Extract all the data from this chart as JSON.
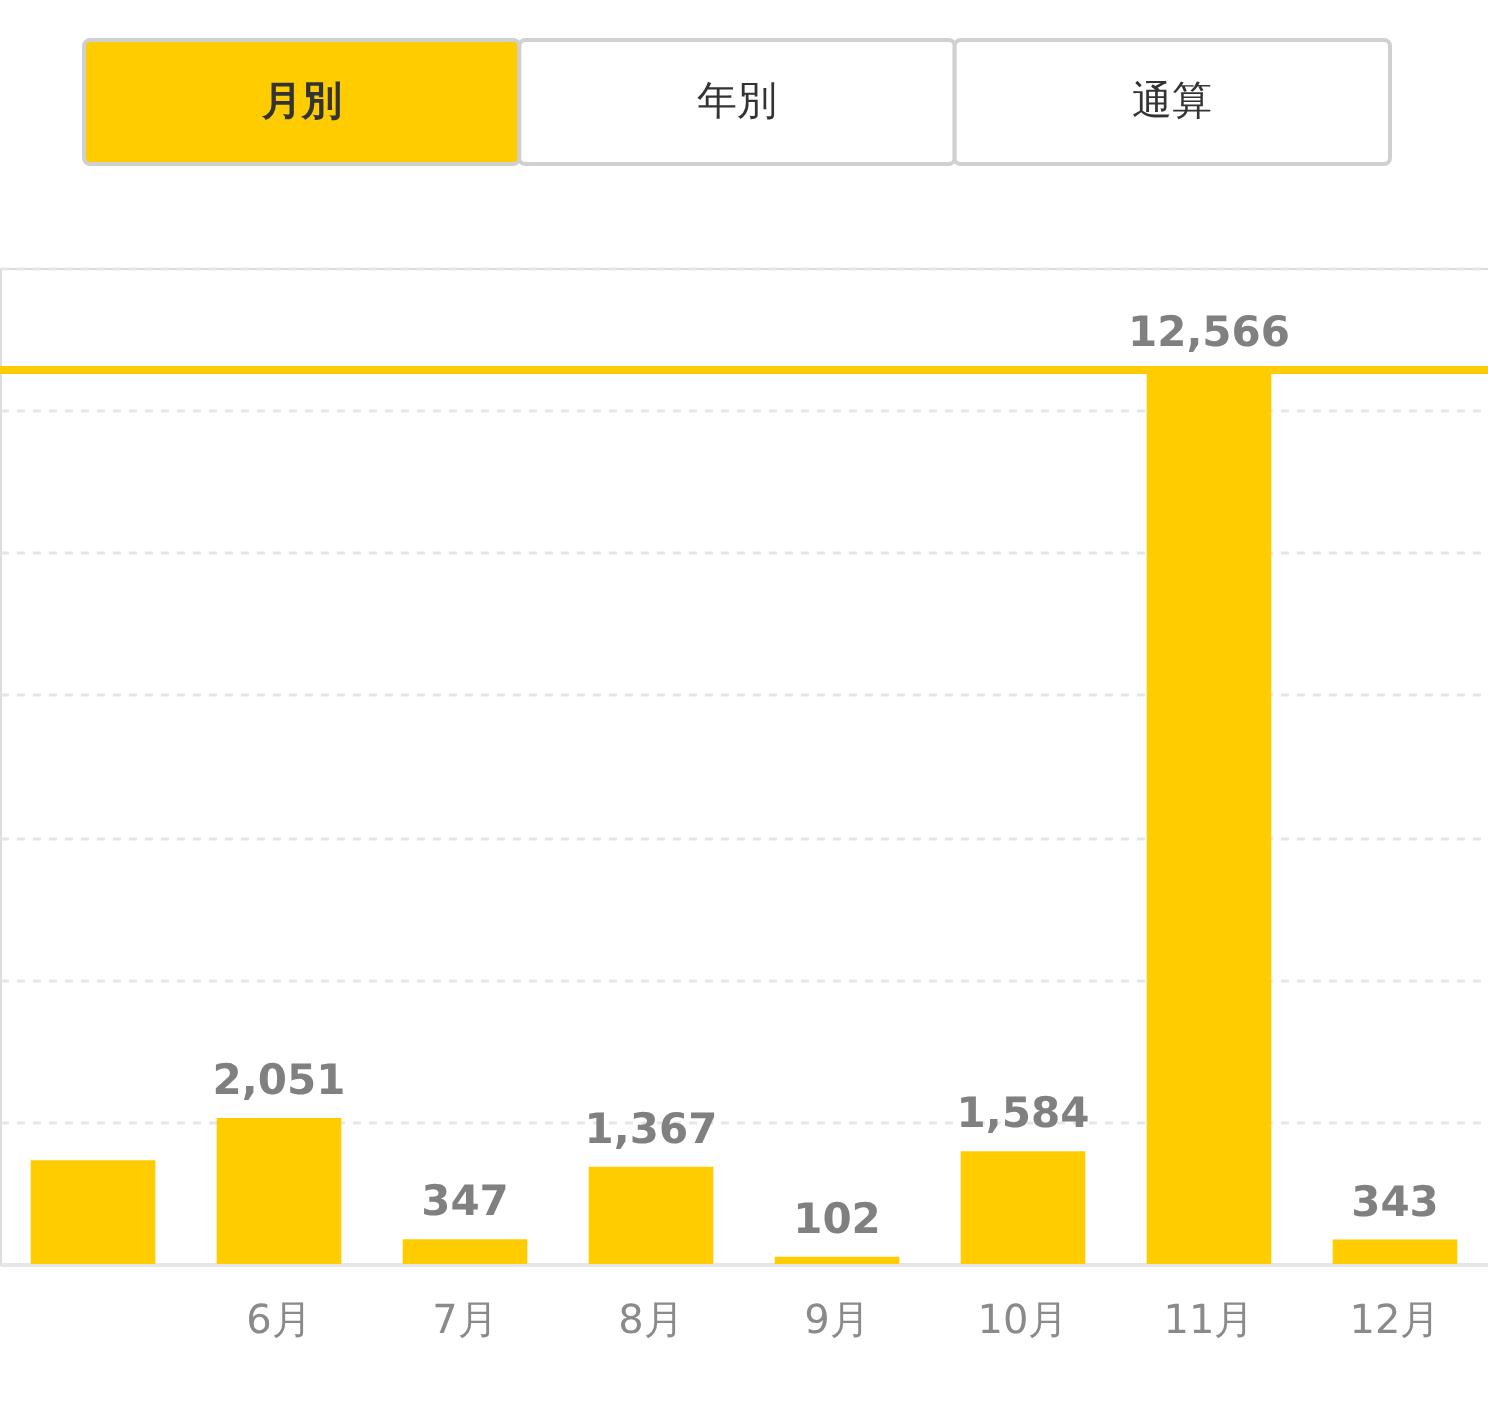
{
  "chart_data": {
    "type": "bar",
    "categories": [
      null,
      "6月",
      "7月",
      "8月",
      "9月",
      "10月",
      "11月",
      "12月"
    ],
    "values": [
      1459,
      2051,
      347,
      1367,
      102,
      1584,
      12566,
      343
    ],
    "color": "#ffcc00",
    "value_labels": [
      null,
      "2,051",
      "347",
      "1,367",
      "102",
      "1,584",
      "12,566",
      "343"
    ],
    "ylim": [
      0,
      14000
    ],
    "yticks": [
      {
        "value": 2000,
        "label": null
      },
      {
        "value": 4000,
        "label": null
      },
      {
        "value": 6000,
        "label": null
      },
      {
        "value": 8000,
        "label": null
      },
      {
        "value": 10000,
        "label": null
      },
      {
        "value": 12000,
        "label": null
      },
      {
        "value": 14000,
        "label": null
      }
    ],
    "grid": "y",
    "tick_labels": "x",
    "ref_lines": [
      {
        "axis": "y",
        "value": 12566,
        "color": "#ffcc00"
      }
    ],
    "annotations": [
      "月別",
      "年別",
      "通算"
    ]
  }
}
